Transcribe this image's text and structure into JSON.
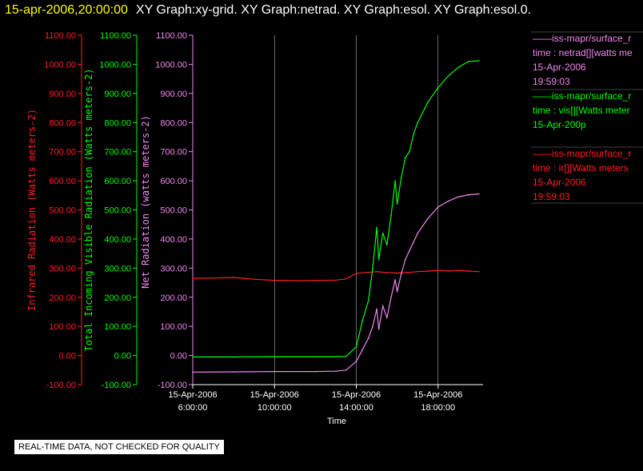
{
  "header": {
    "timestamp": "15-apr-2006,20:00:00",
    "graphs": "XY Graph:xy-grid.  XY Graph:netrad.  XY Graph:esol.  XY Graph:esol.0."
  },
  "notice": "REAL-TIME DATA, NOT CHECKED FOR QUALITY",
  "colors": {
    "ir": "#ff2020",
    "vis": "#00ff00",
    "net": "#ee88ee",
    "grid": "#ffffff"
  },
  "chart_data": {
    "type": "line",
    "xlabel": "Time",
    "x_ticks": [
      {
        "date": "15-Apr-2006",
        "time": "6:00:00",
        "hour": 6
      },
      {
        "date": "15-Apr-2006",
        "time": "10:00:00",
        "hour": 10
      },
      {
        "date": "15-Apr-2006",
        "time": "14:00:00",
        "hour": 14
      },
      {
        "date": "15-Apr-2006",
        "time": "18:00:00",
        "hour": 18
      }
    ],
    "xlim_hours": [
      6,
      20.2
    ],
    "axes": [
      {
        "id": "ir",
        "label": "Infrared Radiation (Watts meters-2)",
        "ylim": [
          -100,
          1100
        ],
        "color": "#ff2020",
        "ticks": [
          "-100.00",
          "0.00",
          "100.00",
          "200.00",
          "300.00",
          "400.00",
          "500.00",
          "600.00",
          "700.00",
          "800.00",
          "900.00",
          "1000.00",
          "1100.00"
        ]
      },
      {
        "id": "vis",
        "label": "Total Incoming Visible Radiation (Watts meters-2)",
        "ylim": [
          -100,
          1100
        ],
        "color": "#00ff00",
        "ticks": [
          "-100.00",
          "0.00",
          "100.00",
          "200.00",
          "300.00",
          "400.00",
          "500.00",
          "600.00",
          "700.00",
          "800.00",
          "900.00",
          "1000.00",
          "1100.00"
        ]
      },
      {
        "id": "net",
        "label": "Net Radiation (watts meters-2)",
        "ylim": [
          -100,
          1100
        ],
        "color": "#ee88ee",
        "ticks": [
          "-100.00",
          "0.00",
          "100.00",
          "200.00",
          "300.00",
          "400.00",
          "500.00",
          "600.00",
          "700.00",
          "800.00",
          "900.00",
          "1000.00",
          "1100.00"
        ]
      }
    ],
    "series": [
      {
        "axis": "ir",
        "color": "#ff2020",
        "x": [
          6,
          7,
          8,
          9,
          10,
          11,
          12,
          13,
          13.5,
          14,
          14.5,
          15,
          15.5,
          16,
          16.5,
          17,
          17.5,
          18,
          18.5,
          19,
          19.5,
          20
        ],
        "y": [
          265,
          266,
          268,
          262,
          258,
          257,
          258,
          259,
          263,
          282,
          285,
          288,
          285,
          283,
          285,
          288,
          290,
          292,
          290,
          292,
          290,
          288
        ]
      },
      {
        "axis": "vis",
        "color": "#00ff00",
        "x": [
          6,
          8,
          10,
          12,
          13,
          13.5,
          14,
          14.3,
          14.6,
          14.8,
          15,
          15.1,
          15.3,
          15.5,
          15.7,
          15.9,
          16,
          16.2,
          16.4,
          16.6,
          16.8,
          17,
          17.5,
          18,
          18.5,
          19,
          19.5,
          20
        ],
        "y": [
          -5,
          -5,
          -4,
          -4,
          -4,
          -3,
          30,
          120,
          190,
          300,
          440,
          330,
          420,
          380,
          480,
          600,
          520,
          610,
          680,
          700,
          760,
          800,
          870,
          920,
          960,
          990,
          1010,
          1012
        ]
      },
      {
        "axis": "net",
        "color": "#ee88ee",
        "x": [
          6,
          8,
          10,
          12,
          13,
          13.5,
          14,
          14.3,
          14.6,
          14.8,
          15,
          15.1,
          15.3,
          15.5,
          15.7,
          15.9,
          16,
          16.2,
          16.4,
          16.6,
          16.8,
          17,
          17.5,
          18,
          18.5,
          19,
          19.5,
          20
        ],
        "y": [
          -57,
          -56,
          -55,
          -55,
          -54,
          -50,
          -20,
          20,
          60,
          100,
          160,
          90,
          170,
          130,
          200,
          260,
          220,
          280,
          330,
          360,
          390,
          420,
          470,
          510,
          530,
          545,
          552,
          555
        ]
      }
    ]
  },
  "legend": [
    {
      "line1": "——iss-mapr/surface_r",
      "line2": "time : netrad[][watts me",
      "line3": "15-Apr-2006",
      "line4": "19:59:03",
      "color": "#ee88ee"
    },
    {
      "line1": "——iss-mapr/surface_r",
      "line2": "time : vis[][Watts meter",
      "line3": "15-Apr-200p",
      "line4": "",
      "color": "#00ff00"
    },
    {
      "line1": "——iss-mapr/surface_r",
      "line2": "time : ir[][Watts meters",
      "line3": "15-Apr-2006",
      "line4": "19:59:03",
      "color": "#ff2020"
    }
  ]
}
